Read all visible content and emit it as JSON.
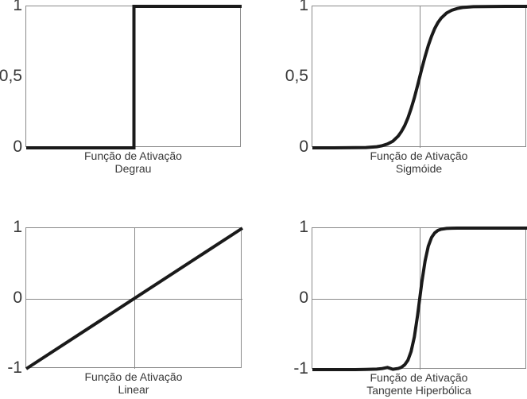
{
  "figure": {
    "background": "#ffffff",
    "description": "Four activation function plots arranged in a 2x2 grid"
  },
  "colors": {
    "curve": "#1a1a1a",
    "axis_box": "#8a8a8a",
    "gridline": "#8a8a8a",
    "text": "#383838"
  },
  "chart_data": [
    {
      "type": "line",
      "function": "step",
      "title_line1": "Função de Ativação",
      "title_line2": "Degrau",
      "xlim": [
        -1,
        1
      ],
      "ylim": [
        0,
        1
      ],
      "y_ticks": [
        {
          "label": "1",
          "value": 1
        },
        {
          "label": "0,5",
          "value": 0.5
        },
        {
          "label": "0",
          "value": 0
        }
      ],
      "gridlines": {
        "vertical_at_x": null,
        "horizontal_at_y": null
      },
      "stroke_width": 4,
      "points": [
        [
          -1,
          0
        ],
        [
          0,
          0
        ],
        [
          0,
          1
        ],
        [
          1,
          1
        ]
      ]
    },
    {
      "type": "line",
      "function": "sigmoid",
      "title_line1": "Função de Ativação",
      "title_line2": "Sigmóide",
      "xlim": [
        -1,
        1
      ],
      "ylim": [
        0,
        1
      ],
      "y_ticks": [
        {
          "label": "1",
          "value": 1
        },
        {
          "label": "0,5",
          "value": 0.5
        },
        {
          "label": "0",
          "value": 0
        }
      ],
      "gridlines": {
        "vertical_at_x": 0,
        "horizontal_at_y": null
      },
      "stroke_width": 4,
      "points": [
        [
          -1,
          0
        ],
        [
          -0.8,
          0
        ],
        [
          -0.6,
          0.001
        ],
        [
          -0.5,
          0.002
        ],
        [
          -0.4,
          0.008
        ],
        [
          -0.35,
          0.015
        ],
        [
          -0.3,
          0.027
        ],
        [
          -0.25,
          0.047
        ],
        [
          -0.2,
          0.083
        ],
        [
          -0.17,
          0.115
        ],
        [
          -0.14,
          0.157
        ],
        [
          -0.11,
          0.211
        ],
        [
          -0.08,
          0.277
        ],
        [
          -0.05,
          0.354
        ],
        [
          -0.02,
          0.44
        ],
        [
          0,
          0.5
        ],
        [
          0.02,
          0.56
        ],
        [
          0.05,
          0.646
        ],
        [
          0.08,
          0.723
        ],
        [
          0.11,
          0.789
        ],
        [
          0.14,
          0.843
        ],
        [
          0.17,
          0.885
        ],
        [
          0.2,
          0.917
        ],
        [
          0.25,
          0.953
        ],
        [
          0.3,
          0.973
        ],
        [
          0.35,
          0.985
        ],
        [
          0.4,
          0.992
        ],
        [
          0.5,
          0.998
        ],
        [
          0.6,
          0.999
        ],
        [
          0.8,
          1
        ],
        [
          1,
          1
        ]
      ]
    },
    {
      "type": "line",
      "function": "linear",
      "title_line1": "Função de Ativação",
      "title_line2": "Linear",
      "xlim": [
        -1,
        1
      ],
      "ylim": [
        -1,
        1
      ],
      "y_ticks": [
        {
          "label": "1",
          "value": 1
        },
        {
          "label": "0",
          "value": 0
        },
        {
          "label": "-1",
          "value": -1
        }
      ],
      "gridlines": {
        "vertical_at_x": 0,
        "horizontal_at_y": 0
      },
      "stroke_width": 4,
      "points": [
        [
          -1,
          -1
        ],
        [
          1,
          1
        ]
      ]
    },
    {
      "type": "line",
      "function": "tanh",
      "title_line1": "Função de Ativação",
      "title_line2": "Tangente Hiperbólica",
      "xlim": [
        -1,
        1
      ],
      "ylim": [
        -1,
        1
      ],
      "y_ticks": [
        {
          "label": "1",
          "value": 1
        },
        {
          "label": "0",
          "value": 0
        },
        {
          "label": "-1",
          "value": -1
        }
      ],
      "gridlines": {
        "vertical_at_x": 0,
        "horizontal_at_y": 0
      },
      "stroke_width": 4,
      "points": [
        [
          -1,
          -1
        ],
        [
          -0.8,
          -1
        ],
        [
          -0.6,
          -1
        ],
        [
          -0.5,
          -0.998
        ],
        [
          -0.4,
          -0.993
        ],
        [
          -0.35,
          -0.985
        ],
        [
          -0.3,
          -0.97
        ],
        [
          -0.25,
          -0.995
        ],
        [
          -0.2,
          -0.984
        ],
        [
          -0.17,
          -0.967
        ],
        [
          -0.14,
          -0.933
        ],
        [
          -0.11,
          -0.867
        ],
        [
          -0.08,
          -0.744
        ],
        [
          -0.05,
          -0.537
        ],
        [
          -0.02,
          -0.236
        ],
        [
          0,
          0
        ],
        [
          0.02,
          0.236
        ],
        [
          0.05,
          0.537
        ],
        [
          0.08,
          0.744
        ],
        [
          0.11,
          0.867
        ],
        [
          0.14,
          0.933
        ],
        [
          0.17,
          0.967
        ],
        [
          0.2,
          0.984
        ],
        [
          0.25,
          0.995
        ],
        [
          0.3,
          0.999
        ],
        [
          0.35,
          1
        ],
        [
          0.4,
          1
        ],
        [
          0.5,
          1
        ],
        [
          0.6,
          1
        ],
        [
          0.8,
          1
        ],
        [
          1,
          1
        ]
      ]
    }
  ]
}
